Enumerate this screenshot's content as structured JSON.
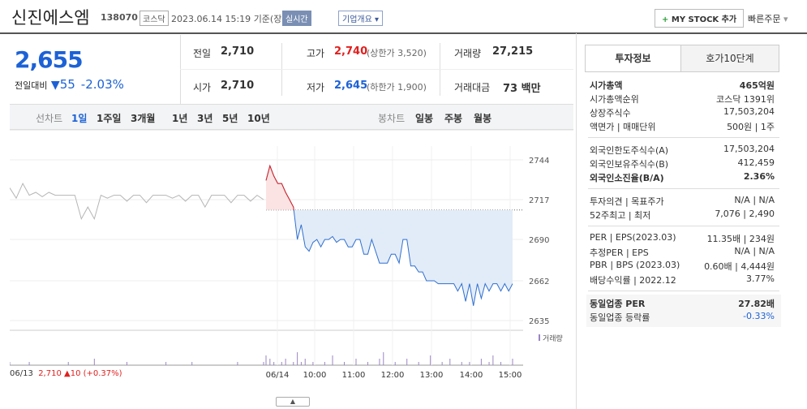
{
  "header": {
    "name": "신진에스엠",
    "code": "138070",
    "market": "코스닥",
    "datetime": "2023.06.14 15:19",
    "basis": "기준(장중)",
    "realtime": "실시간",
    "overview": "기업개요",
    "mystock": "MY STOCK 추가",
    "quick": "빠른주문"
  },
  "price": {
    "current": "2,655",
    "change_label": "전일대비",
    "change": "55",
    "change_pct": "-2.03%"
  },
  "stats": [
    {
      "label": "전일",
      "value": "2,710"
    },
    {
      "label": "고가",
      "value": "2,740",
      "note": "(상한가 3,520)"
    },
    {
      "label": "거래량",
      "value": "27,215"
    },
    {
      "label": "시가",
      "value": "2,710"
    },
    {
      "label": "저가",
      "value": "2,645",
      "note": "(하한가 1,900)"
    },
    {
      "label": "거래대금",
      "value": "73 백만"
    }
  ],
  "tabs": {
    "line_label": "선차트",
    "periods": [
      "1일",
      "1주일",
      "3개월",
      "1년",
      "3년",
      "5년",
      "10년"
    ],
    "candle_label": "봉차트",
    "candles": [
      "일봉",
      "주봉",
      "월봉"
    ]
  },
  "chart_data": {
    "type": "line",
    "ylim": [
      2635,
      2744
    ],
    "yticks": [
      2744,
      2717,
      2690,
      2662,
      2635
    ],
    "grid": true,
    "reference": 2710,
    "volume_label": "거래량",
    "x_labels": [
      "06/14",
      "10:00",
      "11:00",
      "12:00",
      "13:00",
      "14:00",
      "15:00"
    ],
    "series": [
      {
        "color": "#b5b5b5",
        "values": [
          2725,
          2718,
          2728,
          2720,
          2722,
          2719,
          2722,
          2720,
          2720,
          2720,
          2720,
          2704,
          2712,
          2704,
          2720,
          2718,
          2720,
          2720,
          2716,
          2720,
          2720,
          2715,
          2720,
          2720,
          2720,
          2718,
          2720,
          2716,
          2720,
          2720,
          2712,
          2720,
          2720,
          2720,
          2715,
          2720,
          2720,
          2716,
          2720,
          2717
        ],
        "volume": [
          1,
          0,
          0,
          1,
          0,
          0,
          0,
          0,
          0,
          1,
          0,
          0,
          0,
          2,
          0,
          0,
          0,
          0,
          1,
          0,
          0,
          0,
          0,
          0,
          1,
          0,
          0,
          0,
          1,
          0,
          0,
          0,
          0,
          0,
          0,
          1,
          0,
          0,
          0,
          1
        ]
      },
      {
        "color": "#2f6fd0",
        "up_color": "#e0201e",
        "values": [
          2730,
          2740,
          2733,
          2728,
          2728,
          2722,
          2717,
          2712,
          2690,
          2700,
          2685,
          2682,
          2688,
          2690,
          2685,
          2690,
          2690,
          2692,
          2688,
          2690,
          2690,
          2685,
          2685,
          2690,
          2690,
          2680,
          2680,
          2690,
          2682,
          2674,
          2674,
          2674,
          2680,
          2680,
          2674,
          2690,
          2690,
          2672,
          2672,
          2668,
          2668,
          2662,
          2662,
          2662,
          2660,
          2660,
          2660,
          2660,
          2660,
          2655,
          2660,
          2648,
          2660,
          2645,
          2660,
          2650,
          2660,
          2655,
          2660,
          2660,
          2655,
          2660,
          2655,
          2660
        ],
        "volume": [
          3,
          2,
          1,
          0,
          1,
          2,
          0,
          1,
          4,
          1,
          2,
          0,
          1,
          0,
          0,
          1,
          0,
          3,
          0,
          0,
          1,
          0,
          0,
          2,
          0,
          0,
          1,
          0,
          0,
          2,
          4,
          0,
          0,
          1,
          0,
          0,
          2,
          0,
          0,
          1,
          0,
          0,
          3,
          0,
          0,
          1,
          0,
          2,
          0,
          0,
          1,
          0,
          1,
          0,
          0,
          2,
          0,
          1,
          3,
          0,
          1,
          0,
          0,
          2
        ]
      }
    ]
  },
  "footer": {
    "date": "06/13",
    "price": "2,710",
    "change": "▲10 (+0.37%)"
  },
  "info": {
    "tabs": [
      "투자정보",
      "호가10단계"
    ],
    "sections": [
      [
        {
          "label": "시가총액",
          "value": "465억원"
        },
        {
          "label": "시가총액순위",
          "value": "코스닥 1391위"
        },
        {
          "label": "상장주식수",
          "value": "17,503,204"
        },
        {
          "label": "액면가 | 매매단위",
          "value": "500원 | 1주"
        }
      ],
      [
        {
          "label": "외국인한도주식수(A)",
          "value": "17,503,204"
        },
        {
          "label": "외국인보유주식수(B)",
          "value": "412,459"
        },
        {
          "label": "외국인소진율(B/A)",
          "value": "2.36%"
        }
      ],
      [
        {
          "label": "투자의견 | 목표주가",
          "value": "N/A | N/A"
        },
        {
          "label": "52주최고 | 최저",
          "value": "7,076 | 2,490"
        }
      ],
      [
        {
          "label": "PER | EPS(2023.03)",
          "value": "11.35배 | 234원"
        },
        {
          "label": "추정PER | EPS",
          "value": "N/A | N/A"
        },
        {
          "label": "PBR | BPS (2023.03)",
          "value": "0.60배 | 4,444원"
        },
        {
          "label": "배당수익률 | 2022.12",
          "value": "3.77%"
        }
      ],
      [
        {
          "label": "동일업종 PER",
          "value": "27.82배"
        },
        {
          "label": "동일업종 등락률",
          "value": "-0.33%"
        }
      ]
    ]
  }
}
